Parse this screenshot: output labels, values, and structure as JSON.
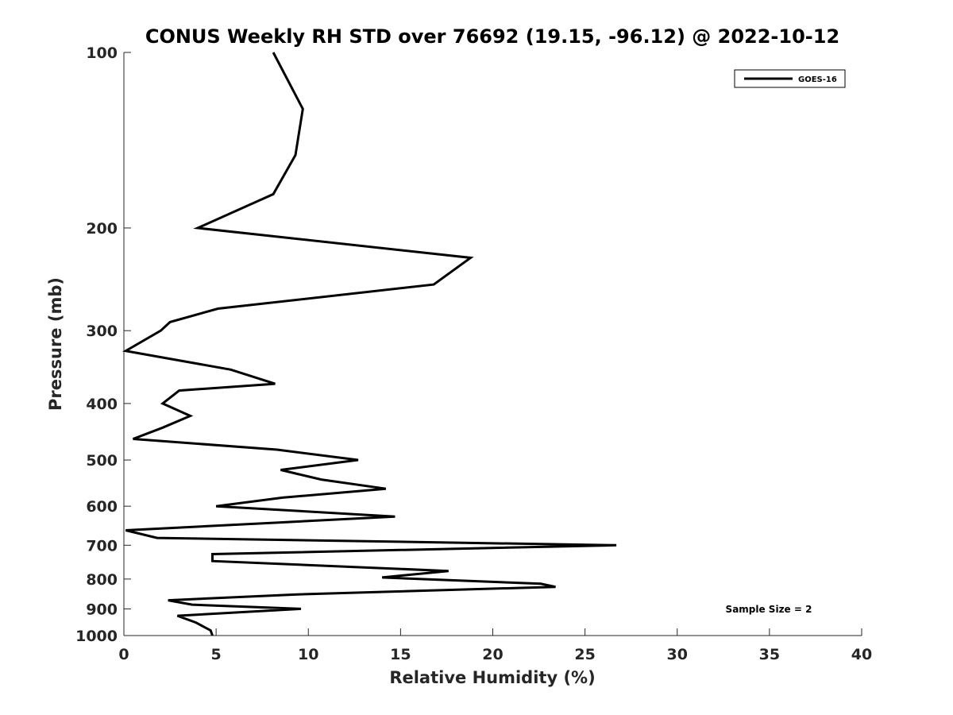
{
  "chart_data": {
    "type": "line",
    "title": "CONUS Weekly RH STD over 76692 (19.15, -96.12) @ 2022-10-12",
    "xlabel": "Relative Humidity (%)",
    "ylabel": "Pressure (mb)",
    "xlim": [
      0,
      40
    ],
    "ylim": [
      100,
      1000
    ],
    "y_scale": "log",
    "y_reversed": true,
    "grid": false,
    "legend_position": "top-right",
    "x_ticks": [
      0,
      5,
      10,
      15,
      20,
      25,
      30,
      35,
      40
    ],
    "y_ticks": [
      100,
      200,
      300,
      400,
      500,
      600,
      700,
      800,
      900,
      1000
    ],
    "annotation": "Sample Size = 2",
    "series": [
      {
        "name": "GOES-16",
        "color": "#000000",
        "points": [
          [
            8.1,
            100
          ],
          [
            9.7,
            125
          ],
          [
            9.3,
            150
          ],
          [
            8.1,
            175
          ],
          [
            4.0,
            200
          ],
          [
            18.8,
            225
          ],
          [
            16.8,
            250
          ],
          [
            5.1,
            275
          ],
          [
            2.5,
            290
          ],
          [
            2.0,
            300
          ],
          [
            0.1,
            325
          ],
          [
            5.8,
            350
          ],
          [
            8.2,
            370
          ],
          [
            3.0,
            380
          ],
          [
            2.1,
            400
          ],
          [
            3.6,
            420
          ],
          [
            2.1,
            440
          ],
          [
            0.5,
            460
          ],
          [
            8.3,
            480
          ],
          [
            12.7,
            500
          ],
          [
            8.5,
            520
          ],
          [
            10.7,
            540
          ],
          [
            14.2,
            560
          ],
          [
            8.6,
            580
          ],
          [
            5.0,
            600
          ],
          [
            14.7,
            625
          ],
          [
            8.4,
            640
          ],
          [
            0.1,
            660
          ],
          [
            1.8,
            680
          ],
          [
            26.7,
            700
          ],
          [
            4.8,
            725
          ],
          [
            4.8,
            745
          ],
          [
            17.6,
            775
          ],
          [
            14.0,
            795
          ],
          [
            22.6,
            815
          ],
          [
            23.4,
            825
          ],
          [
            9.4,
            850
          ],
          [
            2.4,
            870
          ],
          [
            3.7,
            885
          ],
          [
            9.6,
            900
          ],
          [
            2.9,
            925
          ],
          [
            3.9,
            950
          ],
          [
            4.7,
            980
          ],
          [
            4.8,
            1000
          ]
        ]
      }
    ]
  }
}
